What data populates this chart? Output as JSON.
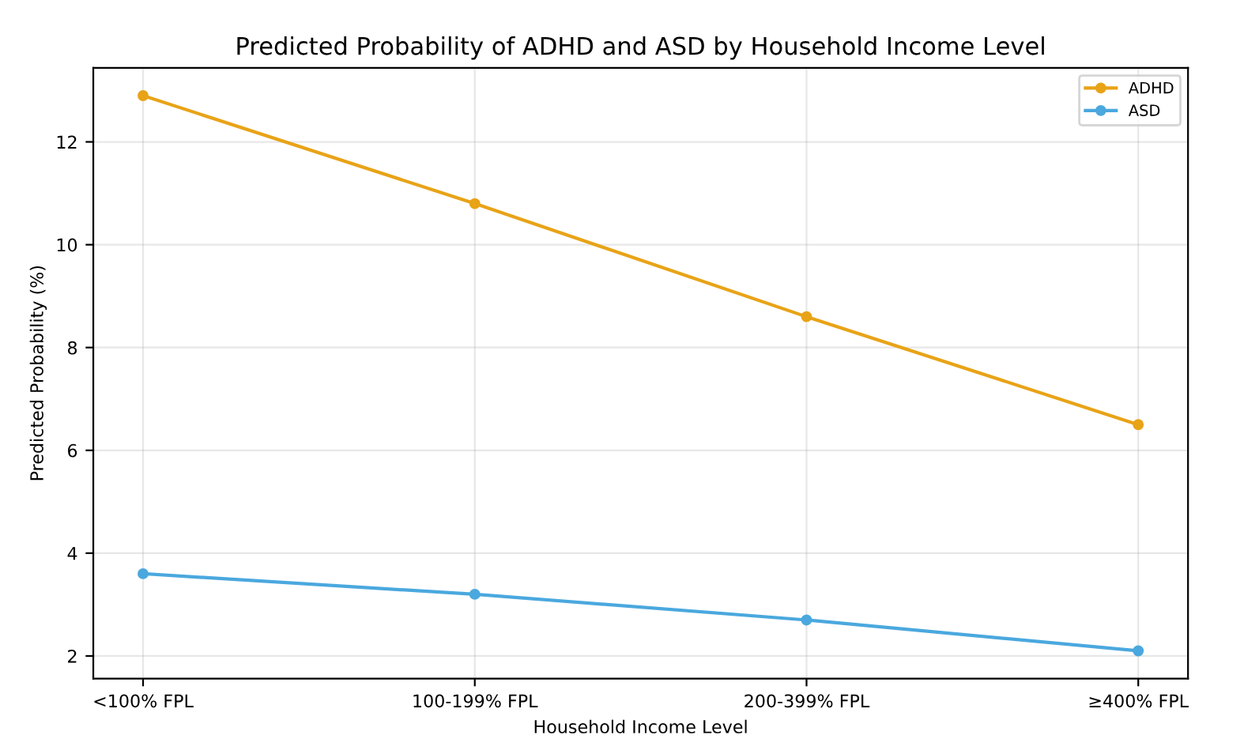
{
  "chart_data": {
    "type": "line",
    "title": "Predicted Probability of ADHD and ASD by Household Income Level",
    "xlabel": "Household Income Level",
    "ylabel": "Predicted Probability (%)",
    "categories": [
      "<100% FPL",
      "100-199% FPL",
      "200-399% FPL",
      "≥400% FPL"
    ],
    "series": [
      {
        "name": "ADHD",
        "color": "#e8a317",
        "values": [
          12.9,
          10.8,
          8.6,
          6.5
        ]
      },
      {
        "name": "ASD",
        "color": "#4aa8de",
        "values": [
          3.6,
          3.2,
          2.7,
          2.1
        ]
      }
    ],
    "ylim": [
      1.56,
      13.44
    ],
    "yticks": [
      2,
      4,
      6,
      8,
      10,
      12
    ],
    "grid": true,
    "legend": "top right",
    "marker": "circle",
    "line_style": "solid"
  }
}
